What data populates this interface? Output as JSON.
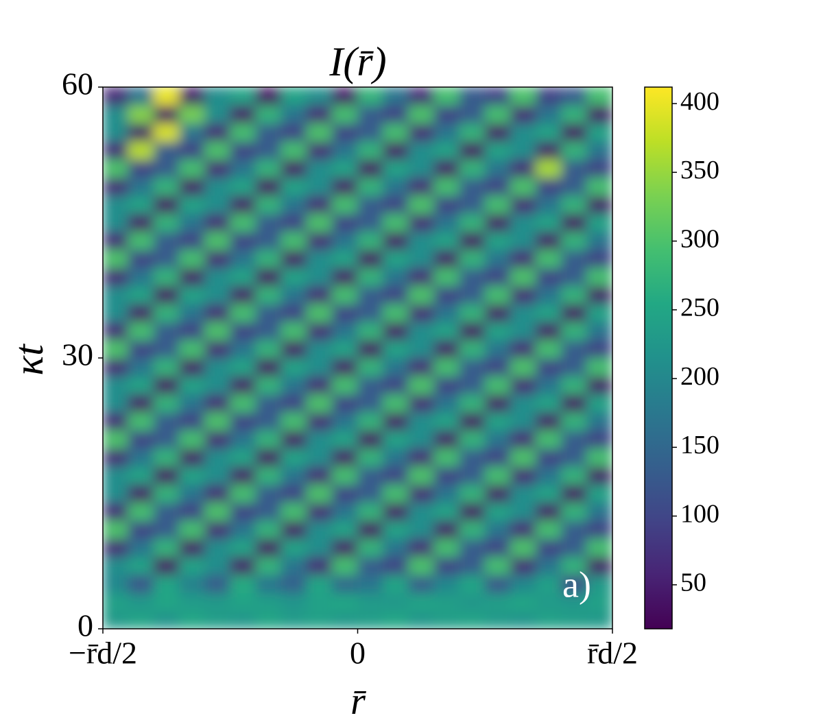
{
  "chart_data": {
    "type": "heatmap",
    "title": "I(r̄)",
    "x_label": "r̄",
    "y_label": "κt",
    "annotation": "a)",
    "xlim": [
      -0.5,
      0.5
    ],
    "ylim": [
      0,
      60
    ],
    "xticks": [
      {
        "value": -0.5,
        "label": "−r̄d/2"
      },
      0,
      {
        "value": 0.5,
        "label": "r̄d/2"
      }
    ],
    "yticks": [
      0,
      30,
      60
    ],
    "colormap": "viridis",
    "clim": [
      18,
      412
    ],
    "cticks": [
      50,
      100,
      150,
      200,
      250,
      300,
      350,
      400
    ],
    "x": [
      -0.475,
      -0.425,
      -0.375,
      -0.325,
      -0.275,
      -0.225,
      -0.175,
      -0.125,
      -0.075,
      -0.025,
      0.025,
      0.075,
      0.125,
      0.175,
      0.225,
      0.275,
      0.325,
      0.375,
      0.425,
      0.475
    ],
    "y": [
      1,
      3,
      5,
      7,
      9,
      11,
      13,
      15,
      17,
      19,
      21,
      23,
      25,
      27,
      29,
      31,
      33,
      35,
      37,
      39,
      41,
      43,
      45,
      47,
      49,
      51,
      53,
      55,
      57,
      59
    ],
    "z": [
      [
        230,
        245,
        220,
        250,
        235,
        225,
        248,
        232,
        240,
        228,
        236,
        250,
        226,
        238,
        244,
        230,
        222,
        240,
        235,
        228
      ],
      [
        240,
        225,
        250,
        232,
        228,
        246,
        236,
        222,
        242,
        250,
        230,
        226,
        245,
        238,
        224,
        236,
        248,
        230,
        226,
        240
      ],
      [
        200,
        120,
        250,
        190,
        130,
        260,
        170,
        140,
        250,
        150,
        170,
        250,
        130,
        200,
        250,
        120,
        200,
        240,
        110,
        230
      ],
      [
        210,
        246,
        40,
        246,
        210,
        46,
        275,
        170,
        65,
        294,
        130,
        94,
        300,
        94,
        130,
        294,
        65,
        170,
        275,
        46
      ],
      [
        65,
        170,
        275,
        46,
        210,
        246,
        40,
        246,
        210,
        46,
        275,
        170,
        65,
        294,
        130,
        94,
        300,
        94,
        130,
        294
      ],
      [
        300,
        94,
        130,
        294,
        65,
        170,
        275,
        46,
        210,
        246,
        40,
        246,
        210,
        46,
        275,
        170,
        65,
        294,
        130,
        94
      ],
      [
        65,
        294,
        130,
        94,
        300,
        94,
        130,
        294,
        65,
        170,
        275,
        46,
        210,
        246,
        40,
        246,
        210,
        46,
        275,
        170
      ],
      [
        210,
        46,
        275,
        170,
        65,
        294,
        130,
        94,
        300,
        94,
        130,
        294,
        65,
        170,
        275,
        46,
        210,
        246,
        40,
        246
      ],
      [
        210,
        246,
        40,
        246,
        210,
        46,
        275,
        170,
        65,
        294,
        130,
        94,
        300,
        94,
        130,
        294,
        65,
        170,
        275,
        46
      ],
      [
        65,
        170,
        275,
        46,
        210,
        246,
        40,
        246,
        210,
        46,
        275,
        170,
        65,
        294,
        130,
        94,
        300,
        94,
        130,
        294
      ],
      [
        300,
        94,
        130,
        294,
        65,
        170,
        275,
        46,
        210,
        246,
        40,
        246,
        210,
        46,
        275,
        170,
        65,
        294,
        130,
        94
      ],
      [
        65,
        294,
        130,
        94,
        300,
        94,
        130,
        294,
        65,
        170,
        275,
        46,
        210,
        246,
        40,
        246,
        210,
        46,
        275,
        170
      ],
      [
        210,
        46,
        275,
        170,
        65,
        294,
        130,
        94,
        300,
        94,
        130,
        294,
        65,
        170,
        275,
        46,
        210,
        246,
        40,
        246
      ],
      [
        210,
        246,
        40,
        246,
        210,
        46,
        275,
        170,
        65,
        294,
        130,
        94,
        300,
        94,
        130,
        294,
        65,
        170,
        275,
        46
      ],
      [
        65,
        170,
        275,
        46,
        210,
        246,
        40,
        246,
        210,
        46,
        275,
        170,
        65,
        294,
        130,
        94,
        300,
        94,
        130,
        294
      ],
      [
        300,
        94,
        130,
        294,
        65,
        170,
        275,
        46,
        210,
        246,
        40,
        246,
        210,
        46,
        275,
        170,
        65,
        294,
        130,
        94
      ],
      [
        65,
        294,
        130,
        94,
        300,
        94,
        130,
        294,
        65,
        170,
        275,
        46,
        210,
        246,
        40,
        246,
        210,
        46,
        275,
        170
      ],
      [
        210,
        46,
        275,
        170,
        65,
        294,
        130,
        94,
        300,
        94,
        130,
        294,
        65,
        170,
        275,
        46,
        210,
        246,
        40,
        246
      ],
      [
        210,
        246,
        40,
        246,
        210,
        46,
        275,
        170,
        65,
        294,
        130,
        94,
        300,
        94,
        130,
        294,
        65,
        170,
        275,
        46
      ],
      [
        65,
        170,
        275,
        46,
        210,
        246,
        40,
        246,
        210,
        46,
        275,
        170,
        65,
        294,
        130,
        94,
        300,
        94,
        130,
        294
      ],
      [
        300,
        94,
        130,
        294,
        65,
        170,
        275,
        46,
        210,
        246,
        40,
        246,
        210,
        46,
        275,
        170,
        65,
        294,
        130,
        94
      ],
      [
        65,
        294,
        130,
        94,
        300,
        94,
        130,
        294,
        65,
        170,
        275,
        46,
        210,
        246,
        40,
        246,
        210,
        46,
        275,
        170
      ],
      [
        210,
        46,
        275,
        170,
        65,
        294,
        130,
        94,
        300,
        94,
        130,
        294,
        65,
        170,
        275,
        46,
        210,
        246,
        40,
        246
      ],
      [
        210,
        246,
        40,
        246,
        210,
        46,
        275,
        170,
        65,
        294,
        130,
        94,
        300,
        94,
        130,
        294,
        65,
        170,
        275,
        46
      ],
      [
        65,
        170,
        275,
        46,
        210,
        246,
        40,
        246,
        210,
        46,
        275,
        170,
        65,
        294,
        130,
        94,
        300,
        94,
        130,
        294
      ],
      [
        300,
        94,
        130,
        294,
        65,
        170,
        275,
        46,
        210,
        246,
        40,
        246,
        210,
        46,
        275,
        170,
        65,
        360,
        130,
        94
      ],
      [
        65,
        370,
        130,
        94,
        300,
        94,
        130,
        294,
        65,
        170,
        275,
        46,
        210,
        246,
        40,
        246,
        210,
        46,
        275,
        170
      ],
      [
        210,
        46,
        390,
        170,
        65,
        294,
        130,
        94,
        300,
        94,
        130,
        294,
        65,
        170,
        275,
        46,
        210,
        246,
        40,
        246
      ],
      [
        210,
        340,
        40,
        330,
        210,
        46,
        275,
        170,
        65,
        294,
        130,
        94,
        300,
        94,
        130,
        294,
        65,
        170,
        275,
        46
      ],
      [
        65,
        170,
        400,
        46,
        210,
        246,
        40,
        246,
        210,
        46,
        275,
        170,
        65,
        294,
        130,
        94,
        300,
        94,
        130,
        294
      ]
    ]
  }
}
